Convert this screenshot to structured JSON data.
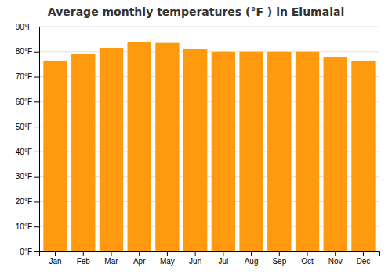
{
  "chart_data": {
    "type": "bar",
    "title": "Average monthly temperatures (°F ) in Elumalai",
    "categories": [
      "Jan",
      "Feb",
      "Mar",
      "Apr",
      "May",
      "Jun",
      "Jul",
      "Aug",
      "Sep",
      "Oct",
      "Nov",
      "Dec"
    ],
    "values": [
      76.5,
      79.0,
      81.5,
      84.0,
      83.5,
      81.0,
      80.0,
      80.0,
      80.0,
      80.0,
      78.0,
      76.5
    ],
    "color": "#ff990d",
    "ylim": [
      0,
      90
    ],
    "yticks": [
      {
        "value": 0,
        "label": "0°F"
      },
      {
        "value": 10,
        "label": "10°F"
      },
      {
        "value": 20,
        "label": "20°F"
      },
      {
        "value": 30,
        "label": "30°F"
      },
      {
        "value": 40,
        "label": "40°F"
      },
      {
        "value": 50,
        "label": "50°F"
      },
      {
        "value": 60,
        "label": "60°F"
      },
      {
        "value": 70,
        "label": "70°F"
      },
      {
        "value": 80,
        "label": "80°F"
      },
      {
        "value": 90,
        "label": "90°F"
      }
    ],
    "grid": true
  }
}
